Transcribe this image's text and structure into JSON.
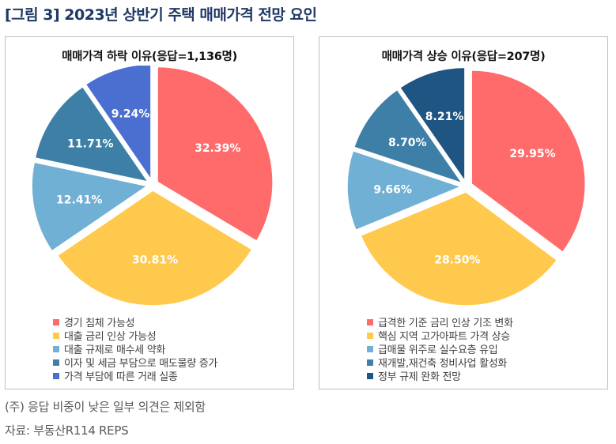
{
  "figure_title": "[그림 3] 2023년 상반기 주택 매매가격 전망 요인",
  "notes": [
    "(주) 응답 비중이 낮은 일부 의견은 제외함",
    "자료: 부동산R114 REPS"
  ],
  "chart_data": [
    {
      "type": "pie",
      "title": "매매가격 하락 이유(응답=1,136명)",
      "categories": [
        "경기 침체 가능성",
        "대출 금리 인상 가능성",
        "대출 규제로 매수세 약화",
        "이자 및 세금 부담으로 매도물량 증가",
        "가격 부담에 따른 거래 실종"
      ],
      "values": [
        32.39,
        30.81,
        12.41,
        11.71,
        9.24
      ],
      "labels": [
        "32.39%",
        "30.81%",
        "12.41%",
        "11.71%",
        "9.24%"
      ],
      "colors": [
        "#ff6b6b",
        "#ffc94d",
        "#6fb0d4",
        "#3d7fa6",
        "#4a6fd1"
      ],
      "legend_position": "bottom"
    },
    {
      "type": "pie",
      "title": "매매가격 상승 이유(응답=207명)",
      "categories": [
        "급격한 기준 금리 인상 기조 변화",
        "핵심 지역 고가아파트 가격 상승",
        "급매물 위주로 실수요층 유입",
        "재개발,재건축 정비사업 활성화",
        "정부 규제 완화 전망"
      ],
      "values": [
        29.95,
        28.5,
        9.66,
        8.7,
        8.21
      ],
      "labels": [
        "29.95%",
        "28.50%",
        "9.66%",
        "8.70%",
        "8.21%"
      ],
      "colors": [
        "#ff6b6b",
        "#ffc94d",
        "#6fb0d4",
        "#3d7fa6",
        "#1f5583"
      ],
      "legend_position": "bottom"
    }
  ]
}
